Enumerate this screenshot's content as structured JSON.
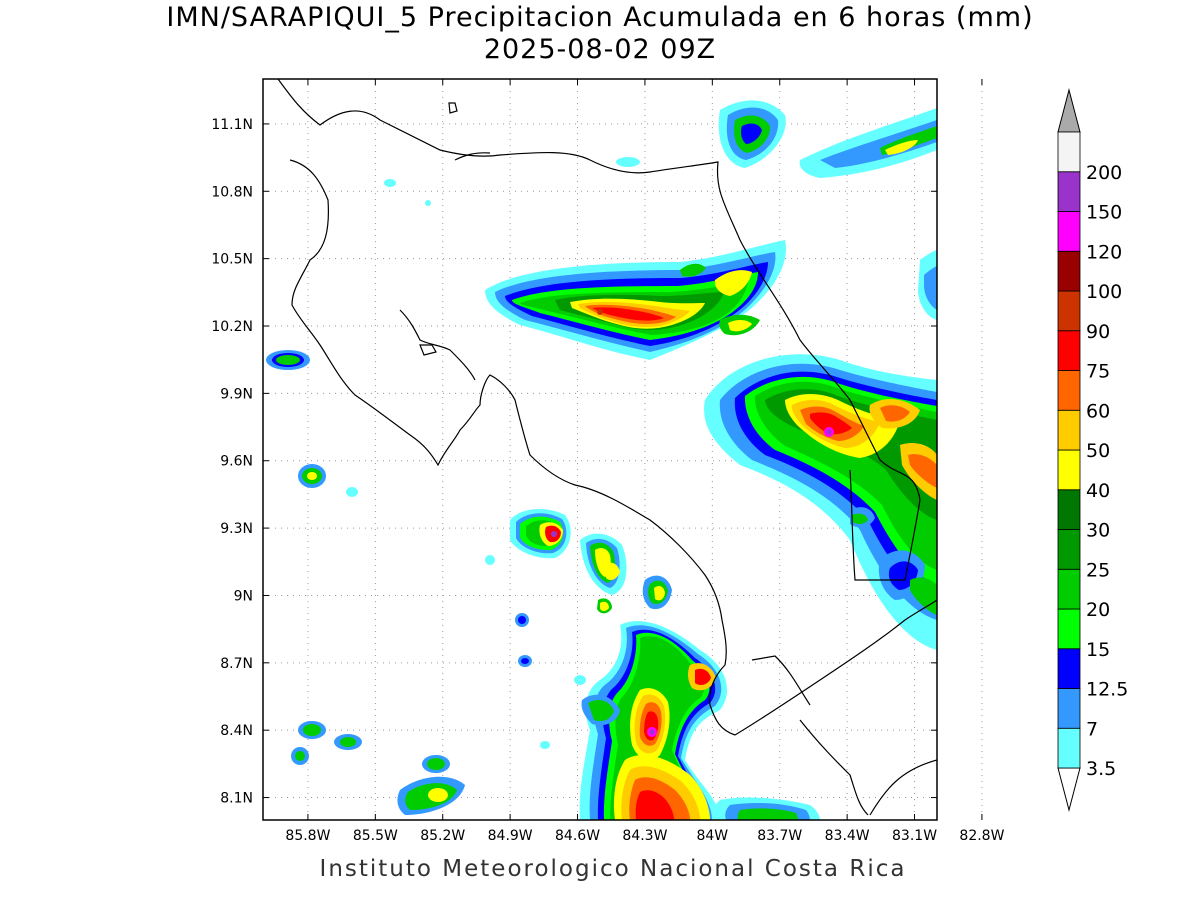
{
  "title": {
    "line1": "IMN/SARAPIQUI_5 Precipitacion Acumulada en 6 horas (mm)",
    "line2": "2025-08-02 09Z"
  },
  "footer": "Instituto Meteorologico Nacional Costa Rica",
  "map": {
    "lon_range": [
      -86.0,
      -83.0
    ],
    "lat_range": [
      8.0,
      11.3
    ],
    "lon_ticks": [
      {
        "value": -85.8,
        "label": "85.8W"
      },
      {
        "value": -85.5,
        "label": "85.5W"
      },
      {
        "value": -85.2,
        "label": "85.2W"
      },
      {
        "value": -84.9,
        "label": "84.9W"
      },
      {
        "value": -84.6,
        "label": "84.6W"
      },
      {
        "value": -84.3,
        "label": "84.3W"
      },
      {
        "value": -84.0,
        "label": "84W"
      },
      {
        "value": -83.7,
        "label": "83.7W"
      },
      {
        "value": -83.4,
        "label": "83.4W"
      },
      {
        "value": -83.1,
        "label": "83.1W"
      },
      {
        "value": -82.8,
        "label": "82.8W"
      }
    ],
    "lat_ticks": [
      {
        "value": 11.1,
        "label": "11.1N"
      },
      {
        "value": 10.8,
        "label": "10.8N"
      },
      {
        "value": 10.5,
        "label": "10.5N"
      },
      {
        "value": 10.2,
        "label": "10.2N"
      },
      {
        "value": 9.9,
        "label": "9.9N"
      },
      {
        "value": 9.6,
        "label": "9.6N"
      },
      {
        "value": 9.3,
        "label": "9.3N"
      },
      {
        "value": 9.0,
        "label": "9N"
      },
      {
        "value": 8.7,
        "label": "8.7N"
      },
      {
        "value": 8.4,
        "label": "8.4N"
      },
      {
        "value": 8.1,
        "label": "8.1N"
      }
    ],
    "grid": true
  },
  "colorbar": {
    "units": "mm",
    "levels": [
      {
        "label": "3.5",
        "color": "#66ffff"
      },
      {
        "label": "7",
        "color": "#3399ff"
      },
      {
        "label": "12.5",
        "color": "#0000ff"
      },
      {
        "label": "15",
        "color": "#00ff00"
      },
      {
        "label": "20",
        "color": "#00cc00"
      },
      {
        "label": "25",
        "color": "#009900"
      },
      {
        "label": "30",
        "color": "#007700"
      },
      {
        "label": "40",
        "color": "#ffff00"
      },
      {
        "label": "50",
        "color": "#ffcc00"
      },
      {
        "label": "60",
        "color": "#ff6600"
      },
      {
        "label": "75",
        "color": "#ff0000"
      },
      {
        "label": "90",
        "color": "#cc3300"
      },
      {
        "label": "100",
        "color": "#990000"
      },
      {
        "label": "120",
        "color": "#ff00ff"
      },
      {
        "label": "150",
        "color": "#9933cc"
      },
      {
        "label": "200",
        "color": "#f4f4f4"
      }
    ],
    "top_cap_color": "#aaaaaa",
    "bottom_cap_color": "#ffffff"
  }
}
